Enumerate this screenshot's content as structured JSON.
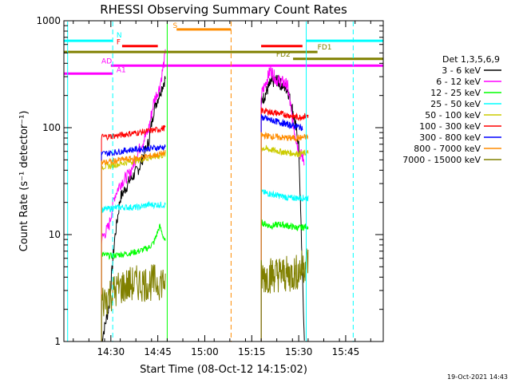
{
  "chart_data": {
    "type": "line",
    "title": "RHESSI Observing Summary Count Rates",
    "xlabel": "Start Time (08-Oct-12 14:15:02)",
    "ylabel": "Count Rate (s⁻¹ detector⁻¹)",
    "yscale": "log",
    "ylim": [
      1,
      1000
    ],
    "xlim_minutes": [
      14.25,
      15.95
    ],
    "x_ticks": [
      {
        "label": "14:30",
        "t": 14.5
      },
      {
        "label": "14:45",
        "t": 14.75
      },
      {
        "label": "15:00",
        "t": 15.0
      },
      {
        "label": "15:15",
        "t": 15.25
      },
      {
        "label": "15:30",
        "t": 15.5
      },
      {
        "label": "15:45",
        "t": 15.75
      }
    ],
    "y_ticks": [
      {
        "label": "1",
        "v": 1
      },
      {
        "label": "10",
        "v": 10
      },
      {
        "label": "100",
        "v": 100
      },
      {
        "label": "1000",
        "v": 1000
      }
    ],
    "legend_title": "Det 1,3,5,6,9",
    "legend_placement": "right",
    "series": [
      {
        "name": "3 - 6 keV",
        "color": "#000000",
        "seg1": [
          [
            14.45,
            1
          ],
          [
            14.49,
            2.1
          ],
          [
            14.52,
            9
          ],
          [
            14.55,
            22
          ],
          [
            14.6,
            32
          ],
          [
            14.65,
            42
          ],
          [
            14.7,
            72
          ],
          [
            14.73,
            150
          ],
          [
            14.76,
            210
          ],
          [
            14.79,
            290
          ]
        ],
        "seg2": [
          [
            15.3,
            170
          ],
          [
            15.35,
            260
          ],
          [
            15.38,
            280
          ],
          [
            15.41,
            250
          ],
          [
            15.44,
            230
          ],
          [
            15.47,
            140
          ],
          [
            15.5,
            70
          ],
          [
            15.53,
            1
          ]
        ]
      },
      {
        "name": "6 - 12 keV",
        "color": "#ff00ff",
        "seg1": [
          [
            14.45,
            9
          ],
          [
            14.49,
            12
          ],
          [
            14.52,
            23
          ],
          [
            14.55,
            30
          ],
          [
            14.6,
            37
          ],
          [
            14.65,
            62
          ],
          [
            14.7,
            95
          ],
          [
            14.73,
            180
          ],
          [
            14.76,
            240
          ],
          [
            14.79,
            480
          ]
        ],
        "seg2": [
          [
            15.3,
            200
          ],
          [
            15.35,
            350
          ],
          [
            15.38,
            280
          ],
          [
            15.41,
            270
          ],
          [
            15.44,
            250
          ],
          [
            15.47,
            110
          ],
          [
            15.5,
            60
          ],
          [
            15.53,
            50
          ]
        ]
      },
      {
        "name": "12 - 25 keV",
        "color": "#00ff00",
        "seg1": [
          [
            14.45,
            6.5
          ],
          [
            14.5,
            6.3
          ],
          [
            14.55,
            6.5
          ],
          [
            14.6,
            6.7
          ],
          [
            14.65,
            7
          ],
          [
            14.7,
            7.5
          ],
          [
            14.73,
            8.5
          ],
          [
            14.76,
            12
          ],
          [
            14.79,
            8.5
          ]
        ],
        "seg2": [
          [
            15.3,
            13
          ],
          [
            15.35,
            12
          ],
          [
            15.4,
            12.5
          ],
          [
            15.45,
            12
          ],
          [
            15.5,
            11.5
          ],
          [
            15.55,
            12
          ]
        ]
      },
      {
        "name": "25 - 50 keV",
        "color": "#00ffff",
        "seg1": [
          [
            14.45,
            17
          ],
          [
            14.5,
            17.5
          ],
          [
            14.55,
            18
          ],
          [
            14.6,
            18
          ],
          [
            14.65,
            18
          ],
          [
            14.7,
            19
          ],
          [
            14.75,
            19
          ],
          [
            14.79,
            19
          ]
        ],
        "seg2": [
          [
            15.3,
            25
          ],
          [
            15.35,
            24
          ],
          [
            15.4,
            23
          ],
          [
            15.45,
            22
          ],
          [
            15.5,
            22
          ],
          [
            15.55,
            22
          ]
        ]
      },
      {
        "name": "50 - 100 keV",
        "color": "#cccc00",
        "seg1": [
          [
            14.45,
            43
          ],
          [
            14.5,
            44
          ],
          [
            14.55,
            46
          ],
          [
            14.6,
            48
          ],
          [
            14.65,
            50
          ],
          [
            14.7,
            52
          ],
          [
            14.75,
            54
          ],
          [
            14.79,
            56
          ]
        ],
        "seg2": [
          [
            15.3,
            65
          ],
          [
            15.35,
            62
          ],
          [
            15.4,
            60
          ],
          [
            15.45,
            58
          ],
          [
            15.5,
            57
          ],
          [
            15.55,
            58
          ]
        ]
      },
      {
        "name": "100 - 300 keV",
        "color": "#ff0000",
        "seg1": [
          [
            14.45,
            82
          ],
          [
            14.5,
            83
          ],
          [
            14.55,
            85
          ],
          [
            14.6,
            88
          ],
          [
            14.65,
            90
          ],
          [
            14.7,
            93
          ],
          [
            14.75,
            96
          ],
          [
            14.79,
            100
          ]
        ],
        "seg2": [
          [
            15.3,
            145
          ],
          [
            15.35,
            140
          ],
          [
            15.4,
            135
          ],
          [
            15.45,
            130
          ],
          [
            15.5,
            125
          ],
          [
            15.55,
            130
          ]
        ]
      },
      {
        "name": "300 - 800 keV",
        "color": "#0000ff",
        "seg1": [
          [
            14.45,
            57
          ],
          [
            14.5,
            58
          ],
          [
            14.55,
            60
          ],
          [
            14.6,
            62
          ],
          [
            14.65,
            63
          ],
          [
            14.7,
            64
          ],
          [
            14.75,
            65
          ],
          [
            14.79,
            66
          ]
        ],
        "seg2": [
          [
            15.3,
            125
          ],
          [
            15.35,
            118
          ],
          [
            15.4,
            112
          ],
          [
            15.45,
            106
          ],
          [
            15.5,
            102
          ],
          [
            15.52,
            100
          ]
        ]
      },
      {
        "name": "800 - 7000 keV",
        "color": "#ff8c00",
        "seg1": [
          [
            14.45,
            47
          ],
          [
            14.5,
            48
          ],
          [
            14.55,
            50
          ],
          [
            14.6,
            51
          ],
          [
            14.65,
            52
          ],
          [
            14.7,
            54
          ],
          [
            14.75,
            56
          ],
          [
            14.79,
            58
          ]
        ],
        "seg2": [
          [
            15.3,
            85
          ],
          [
            15.35,
            83
          ],
          [
            15.4,
            81
          ],
          [
            15.45,
            80
          ],
          [
            15.5,
            80
          ],
          [
            15.55,
            82
          ]
        ]
      },
      {
        "name": "7000 - 15000 keV",
        "color": "#808000",
        "seg1": [
          [
            14.45,
            2.3
          ],
          [
            14.5,
            2.8
          ],
          [
            14.55,
            3.2
          ],
          [
            14.6,
            3.4
          ],
          [
            14.65,
            3.5
          ],
          [
            14.7,
            3.5
          ],
          [
            14.75,
            3.6
          ],
          [
            14.79,
            3.7
          ]
        ],
        "seg2": [
          [
            15.3,
            4
          ],
          [
            15.35,
            4.2
          ],
          [
            15.4,
            4.3
          ],
          [
            15.45,
            4.2
          ],
          [
            15.5,
            4.5
          ],
          [
            15.55,
            5.8
          ]
        ]
      }
    ],
    "flag_bars": [
      {
        "label": "N",
        "color": "#00ffff",
        "y": 650,
        "ranges": [
          [
            14.25,
            14.51
          ],
          [
            15.54,
            15.95
          ]
        ]
      },
      {
        "label": "S",
        "color": "#ff8c00",
        "y": 830,
        "ranges": [
          [
            14.85,
            15.14
          ]
        ]
      },
      {
        "label": "F",
        "color": "#ff0000",
        "y": 580,
        "ranges": [
          [
            14.56,
            14.75
          ],
          [
            15.3,
            15.52
          ]
        ]
      },
      {
        "label": "FD1",
        "color": "#808000",
        "y": 510,
        "ranges": [
          [
            14.25,
            15.6
          ]
        ]
      },
      {
        "label": "FD2",
        "color": "#808000",
        "y": 440,
        "ranges": [
          [
            15.47,
            15.95
          ]
        ]
      },
      {
        "label": "AD",
        "color": "#ff00ff",
        "y": 380,
        "ranges": [
          [
            14.5,
            15.95
          ]
        ]
      },
      {
        "label": "A1",
        "color": "#ff00ff",
        "y": 320,
        "ranges": [
          [
            14.25,
            14.51
          ]
        ]
      }
    ],
    "vertical_lines": [
      {
        "t": 14.27,
        "color": "#00ffff",
        "style": "solid"
      },
      {
        "t": 14.51,
        "color": "#00ffff",
        "style": "dashed"
      },
      {
        "t": 14.8,
        "color": "#00ff00",
        "style": "solid"
      },
      {
        "t": 15.14,
        "color": "#ff8c00",
        "style": "dashed"
      },
      {
        "t": 15.54,
        "color": "#00ffff",
        "style": "solid"
      },
      {
        "t": 15.79,
        "color": "#00ffff",
        "style": "dashed"
      }
    ],
    "grid": false
  },
  "footer_timestamp": "19-Oct-2021 14:43"
}
